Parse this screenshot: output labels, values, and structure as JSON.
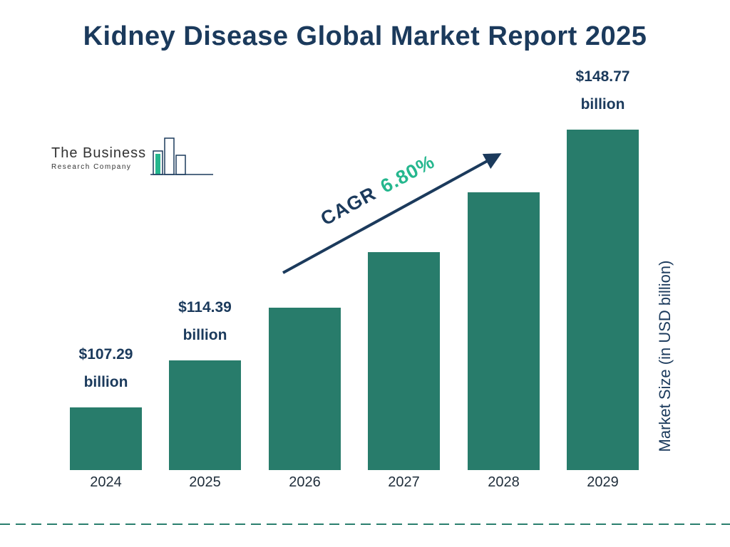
{
  "title": "Kidney Disease Global Market Report 2025",
  "logo": {
    "line1": "The Business",
    "line2": "Research Company"
  },
  "chart_data": {
    "type": "bar",
    "title": "Kidney Disease Global Market Report 2025",
    "categories": [
      "2024",
      "2025",
      "2026",
      "2027",
      "2028",
      "2029"
    ],
    "values": [
      107.29,
      114.39,
      122.17,
      130.48,
      139.35,
      148.77
    ],
    "ylabel": "Market Size (in USD billion)",
    "xlabel": "",
    "ylim": [
      98,
      150
    ],
    "grid": false,
    "legend": "none",
    "annotations": [
      {
        "index": 0,
        "lines": [
          "$107.29",
          "billion"
        ]
      },
      {
        "index": 1,
        "lines": [
          "$114.39",
          "billion"
        ]
      },
      {
        "index": 5,
        "lines": [
          "$148.77",
          "billion"
        ]
      }
    ],
    "cagr": {
      "label": "CAGR",
      "value": "6.80%"
    },
    "colors": {
      "bar": "#287c6b",
      "title": "#1b3a5c",
      "cagr_value": "#25b78e",
      "arrow": "#1b3a5c",
      "dashed_line": "#2a7f6e"
    }
  }
}
